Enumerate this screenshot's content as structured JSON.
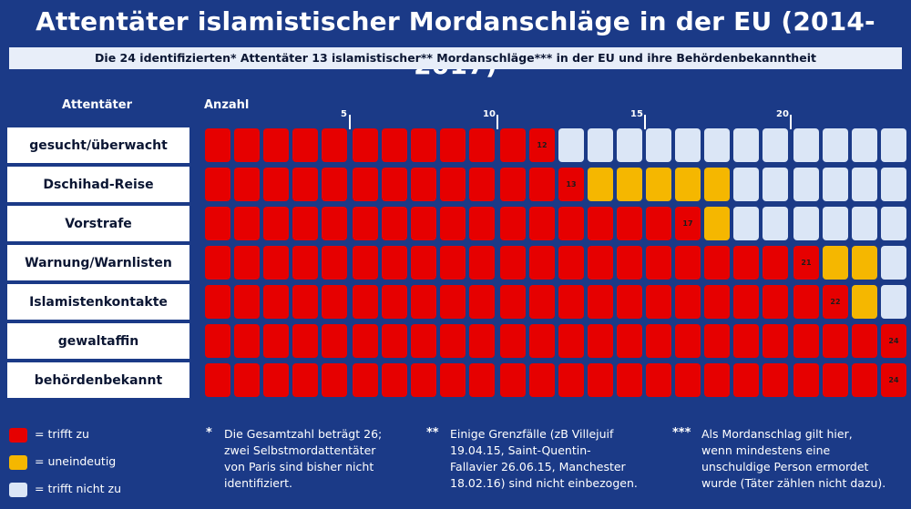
{
  "title": "Attentäter islamistischer Mordanschläge in der EU (2014-2017)",
  "subtitle": "Die 24 identifizierten* Attentäter 13 islamistischer** Mordanschläge*** in der EU und ihre Behördenbekanntheit",
  "colors": {
    "background": "#1b3a87",
    "trifft_zu": "#e60000",
    "uneindeutig": "#f5b700",
    "trifft_nicht_zu": "#dbe6f6"
  },
  "chart_data": {
    "type": "table",
    "row_header": "Attentäter",
    "column_header": "Anzahl",
    "ticks": [
      "5",
      "10",
      "15",
      "20"
    ],
    "total": 24,
    "rows": [
      {
        "label": "gesucht/überwacht",
        "trifft_zu": 12,
        "uneindeutig": 0,
        "trifft_nicht_zu": 12,
        "marker": "12"
      },
      {
        "label": "Dschihad-Reise",
        "trifft_zu": 13,
        "uneindeutig": 5,
        "trifft_nicht_zu": 6,
        "marker": "13"
      },
      {
        "label": "Vorstrafe",
        "trifft_zu": 17,
        "uneindeutig": 1,
        "trifft_nicht_zu": 6,
        "marker": "17"
      },
      {
        "label": "Warnung/Warnlisten",
        "trifft_zu": 21,
        "uneindeutig": 2,
        "trifft_nicht_zu": 1,
        "marker": "21"
      },
      {
        "label": "Islamistenkontakte",
        "trifft_zu": 22,
        "uneindeutig": 1,
        "trifft_nicht_zu": 1,
        "marker": "22"
      },
      {
        "label": "gewaltaffin",
        "trifft_zu": 24,
        "uneindeutig": 0,
        "trifft_nicht_zu": 0,
        "marker": "24"
      },
      {
        "label": "behördenbekannt",
        "trifft_zu": 24,
        "uneindeutig": 0,
        "trifft_nicht_zu": 0,
        "marker": "24"
      }
    ]
  },
  "legend": [
    {
      "key": "trifft_zu",
      "label": "= trifft zu"
    },
    {
      "key": "uneindeutig",
      "label": "= uneindeutig"
    },
    {
      "key": "trifft_nicht_zu",
      "label": "= trifft nicht zu"
    }
  ],
  "notes": [
    {
      "marker": "*",
      "text": "Die Gesamtzahl beträgt 26;\nzwei Selbstmordattentäter\nvon Paris sind bisher nicht\nidentifiziert."
    },
    {
      "marker": "**",
      "text": "Einige Grenzfälle (zB Villejuif\n19.04.15, Saint-Quentin-\nFallavier 26.06.15, Manchester\n18.02.16) sind nicht einbezogen."
    },
    {
      "marker": "***",
      "text": "Als Mordanschlag gilt hier,\nwenn mindestens eine\nunschuldige Person ermordet\nwurde (Täter zählen nicht dazu)."
    }
  ]
}
